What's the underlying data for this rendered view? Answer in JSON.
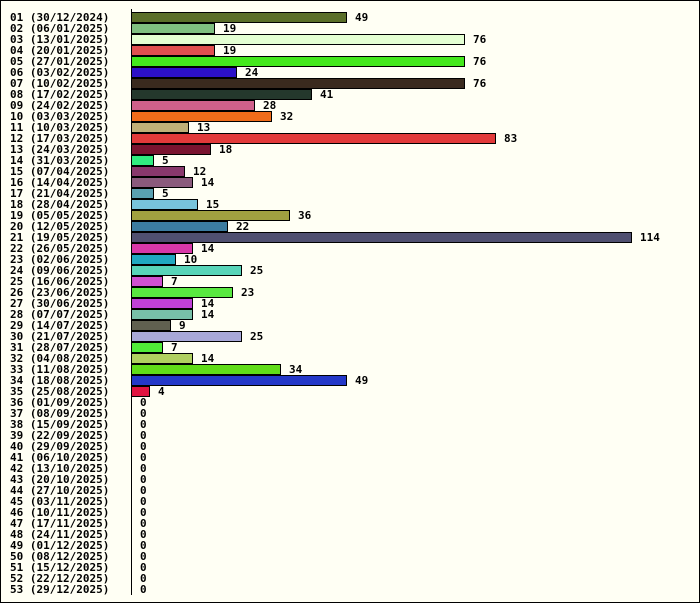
{
  "chart_data": {
    "type": "bar",
    "orientation": "horizontal",
    "title": "",
    "xlabel": "",
    "ylabel": "",
    "xlim": [
      0,
      114
    ],
    "grid": false,
    "legend": "none",
    "categories": [
      "01 (30/12/2024)",
      "02 (06/01/2025)",
      "03 (13/01/2025)",
      "04 (20/01/2025)",
      "05 (27/01/2025)",
      "06 (03/02/2025)",
      "07 (10/02/2025)",
      "08 (17/02/2025)",
      "09 (24/02/2025)",
      "10 (03/03/2025)",
      "11 (10/03/2025)",
      "12 (17/03/2025)",
      "13 (24/03/2025)",
      "14 (31/03/2025)",
      "15 (07/04/2025)",
      "16 (14/04/2025)",
      "17 (21/04/2025)",
      "18 (28/04/2025)",
      "19 (05/05/2025)",
      "20 (12/05/2025)",
      "21 (19/05/2025)",
      "22 (26/05/2025)",
      "23 (02/06/2025)",
      "24 (09/06/2025)",
      "25 (16/06/2025)",
      "26 (23/06/2025)",
      "27 (30/06/2025)",
      "28 (07/07/2025)",
      "29 (14/07/2025)",
      "30 (21/07/2025)",
      "31 (28/07/2025)",
      "32 (04/08/2025)",
      "33 (11/08/2025)",
      "34 (18/08/2025)",
      "35 (25/08/2025)",
      "36 (01/09/2025)",
      "37 (08/09/2025)",
      "38 (15/09/2025)",
      "39 (22/09/2025)",
      "40 (29/09/2025)",
      "41 (06/10/2025)",
      "42 (13/10/2025)",
      "43 (20/10/2025)",
      "44 (27/10/2025)",
      "45 (03/11/2025)",
      "46 (10/11/2025)",
      "47 (17/11/2025)",
      "48 (24/11/2025)",
      "49 (01/12/2025)",
      "50 (08/12/2025)",
      "51 (15/12/2025)",
      "52 (22/12/2025)",
      "53 (29/12/2025)"
    ],
    "values": [
      49,
      19,
      76,
      19,
      76,
      24,
      76,
      41,
      28,
      32,
      13,
      83,
      18,
      5,
      12,
      14,
      5,
      15,
      36,
      22,
      114,
      14,
      10,
      25,
      7,
      23,
      14,
      14,
      9,
      25,
      7,
      14,
      34,
      49,
      4,
      0,
      0,
      0,
      0,
      0,
      0,
      0,
      0,
      0,
      0,
      0,
      0,
      0,
      0,
      0,
      0,
      0,
      0
    ],
    "colors": [
      "#5a6e28",
      "#7fbf80",
      "#e4ffd2",
      "#e05050",
      "#44e81c",
      "#2c10c8",
      "#3a2a1e",
      "#24382c",
      "#d0608a",
      "#f06c1a",
      "#c0b078",
      "#e23a3a",
      "#7a1430",
      "#30ec80",
      "#88386c",
      "#8a5a7c",
      "#5aa0b0",
      "#78c4dc",
      "#a0a040",
      "#3c7ca0",
      "#505070",
      "#d838a8",
      "#20a8c0",
      "#58d4b8",
      "#d050d0",
      "#58e840",
      "#c040d8",
      "#78c0a8",
      "#606050",
      "#a8a8d8",
      "#50ec38",
      "#b0d060",
      "#60dc18",
      "#2438c8",
      "#e01440",
      "#ffffff",
      "#ffffff",
      "#ffffff",
      "#ffffff",
      "#ffffff",
      "#ffffff",
      "#ffffff",
      "#ffffff",
      "#ffffff",
      "#ffffff",
      "#ffffff",
      "#ffffff",
      "#ffffff",
      "#ffffff",
      "#ffffff",
      "#ffffff",
      "#ffffff",
      "#ffffff"
    ]
  }
}
